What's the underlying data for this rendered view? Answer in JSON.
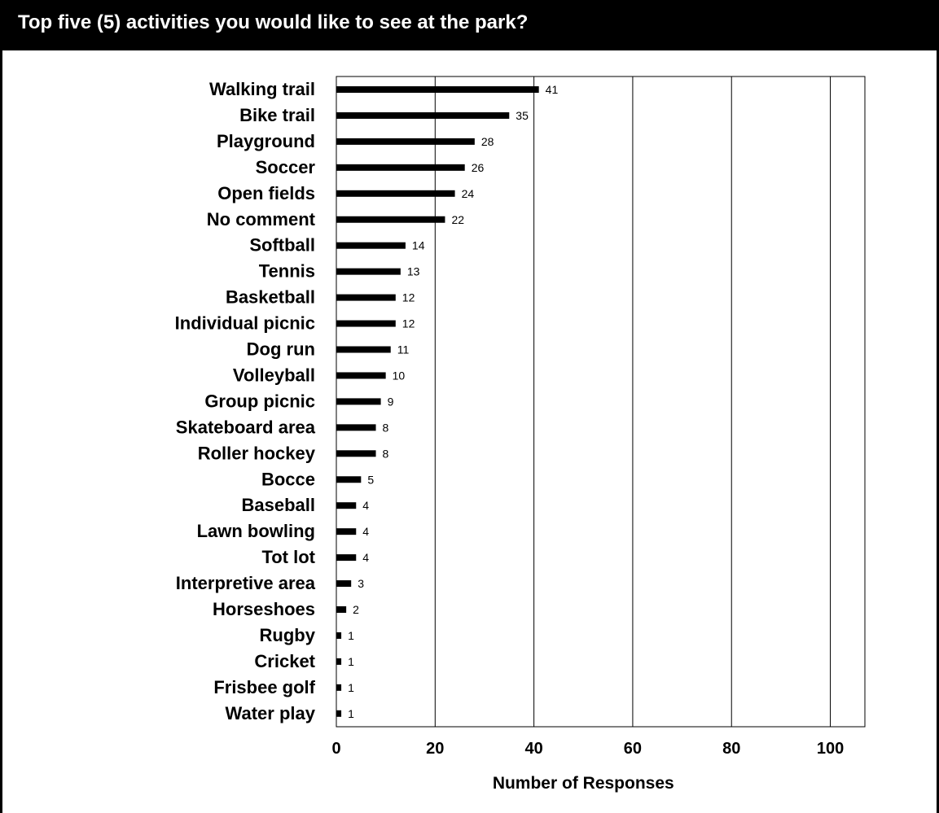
{
  "header": {
    "title": "Top five (5) activities you would like to see at the park?"
  },
  "colors": {
    "header_background": "#000000",
    "header_text": "#ffffff",
    "bar": "#000000",
    "gridline": "#000000"
  },
  "chart_data": {
    "type": "bar",
    "orientation": "horizontal",
    "title": "Top five (5) activities you would like to see at the park?",
    "xlabel": "Number of Responses",
    "ylabel": "",
    "xlim": [
      0,
      107
    ],
    "xticks": [
      0,
      20,
      40,
      60,
      80,
      100
    ],
    "grid": true,
    "legend": "none",
    "categories": [
      "Walking trail",
      "Bike trail",
      "Playground",
      "Soccer",
      "Open fields",
      "No comment",
      "Softball",
      "Tennis",
      "Basketball",
      "Individual picnic",
      "Dog run",
      "Volleyball",
      "Group picnic",
      "Skateboard area",
      "Roller hockey",
      "Bocce",
      "Baseball",
      "Lawn bowling",
      "Tot lot",
      "Interpretive area",
      "Horseshoes",
      "Rugby",
      "Cricket",
      "Frisbee golf",
      "Water play"
    ],
    "values": [
      41,
      35,
      28,
      26,
      24,
      22,
      14,
      13,
      12,
      12,
      11,
      10,
      9,
      8,
      8,
      5,
      4,
      4,
      4,
      3,
      2,
      1,
      1,
      1,
      1
    ]
  }
}
